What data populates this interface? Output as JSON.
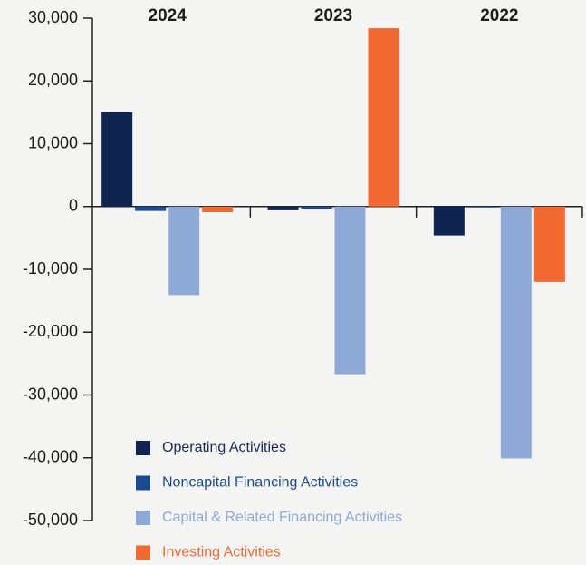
{
  "chart_data": {
    "type": "bar",
    "categories": [
      "2024",
      "2023",
      "2022"
    ],
    "series": [
      {
        "name": "Operating Activities",
        "color": "#0f2451",
        "values": [
          15000,
          -600,
          -4600
        ]
      },
      {
        "name": "Noncapital Financing Activities",
        "color": "#1a4b8f",
        "values": [
          -700,
          -400,
          -150
        ]
      },
      {
        "name": "Capital & Related Financing Activities",
        "color": "#8fa9d6",
        "values": [
          -14100,
          -26700,
          -40100
        ]
      },
      {
        "name": "Investing Activities",
        "color": "#f26a32",
        "values": [
          -900,
          28400,
          -12000
        ]
      }
    ],
    "ylim": [
      -50000,
      30000
    ],
    "yticks": [
      {
        "value": -50000,
        "label": "-50,000"
      },
      {
        "value": -40000,
        "label": "-40,000"
      },
      {
        "value": -30000,
        "label": "-30,000"
      },
      {
        "value": -20000,
        "label": "-20,000"
      },
      {
        "value": -10000,
        "label": "-10,000"
      },
      0,
      {
        "value": 10000,
        "label": "10,000"
      },
      {
        "value": 20000,
        "label": "20,000"
      },
      {
        "value": 30000,
        "label": "30,000"
      }
    ],
    "legend": "bottom-left"
  }
}
